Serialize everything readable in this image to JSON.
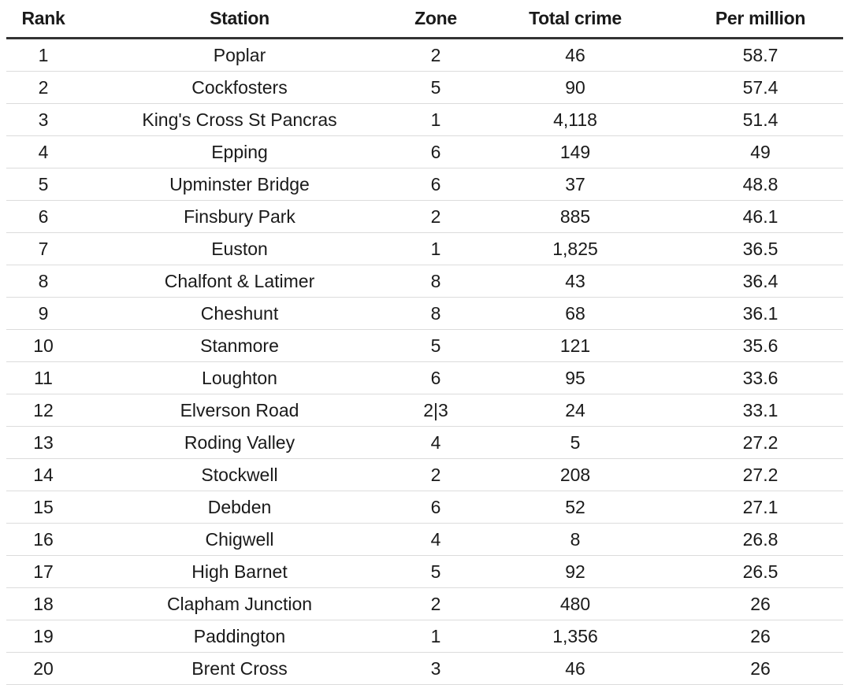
{
  "chart_data": {
    "type": "table",
    "columns": [
      "Rank",
      "Station",
      "Zone",
      "Total crime",
      "Per million"
    ],
    "rows": [
      [
        "1",
        "Poplar",
        "2",
        "46",
        "58.7"
      ],
      [
        "2",
        "Cockfosters",
        "5",
        "90",
        "57.4"
      ],
      [
        "3",
        "King's Cross St Pancras",
        "1",
        "4,118",
        "51.4"
      ],
      [
        "4",
        "Epping",
        "6",
        "149",
        "49"
      ],
      [
        "5",
        "Upminster Bridge",
        "6",
        "37",
        "48.8"
      ],
      [
        "6",
        "Finsbury Park",
        "2",
        "885",
        "46.1"
      ],
      [
        "7",
        "Euston",
        "1",
        "1,825",
        "36.5"
      ],
      [
        "8",
        "Chalfont & Latimer",
        "8",
        "43",
        "36.4"
      ],
      [
        "9",
        "Cheshunt",
        "8",
        "68",
        "36.1"
      ],
      [
        "10",
        "Stanmore",
        "5",
        "121",
        "35.6"
      ],
      [
        "11",
        "Loughton",
        "6",
        "95",
        "33.6"
      ],
      [
        "12",
        "Elverson Road",
        "2|3",
        "24",
        "33.1"
      ],
      [
        "13",
        "Roding Valley",
        "4",
        "5",
        "27.2"
      ],
      [
        "14",
        "Stockwell",
        "2",
        "208",
        "27.2"
      ],
      [
        "15",
        "Debden",
        "6",
        "52",
        "27.1"
      ],
      [
        "16",
        "Chigwell",
        "4",
        "8",
        "26.8"
      ],
      [
        "17",
        "High Barnet",
        "5",
        "92",
        "26.5"
      ],
      [
        "18",
        "Clapham Junction",
        "2",
        "480",
        "26"
      ],
      [
        "19",
        "Paddington",
        "1",
        "1,356",
        "26"
      ],
      [
        "20",
        "Brent Cross",
        "3",
        "46",
        "26"
      ]
    ]
  }
}
